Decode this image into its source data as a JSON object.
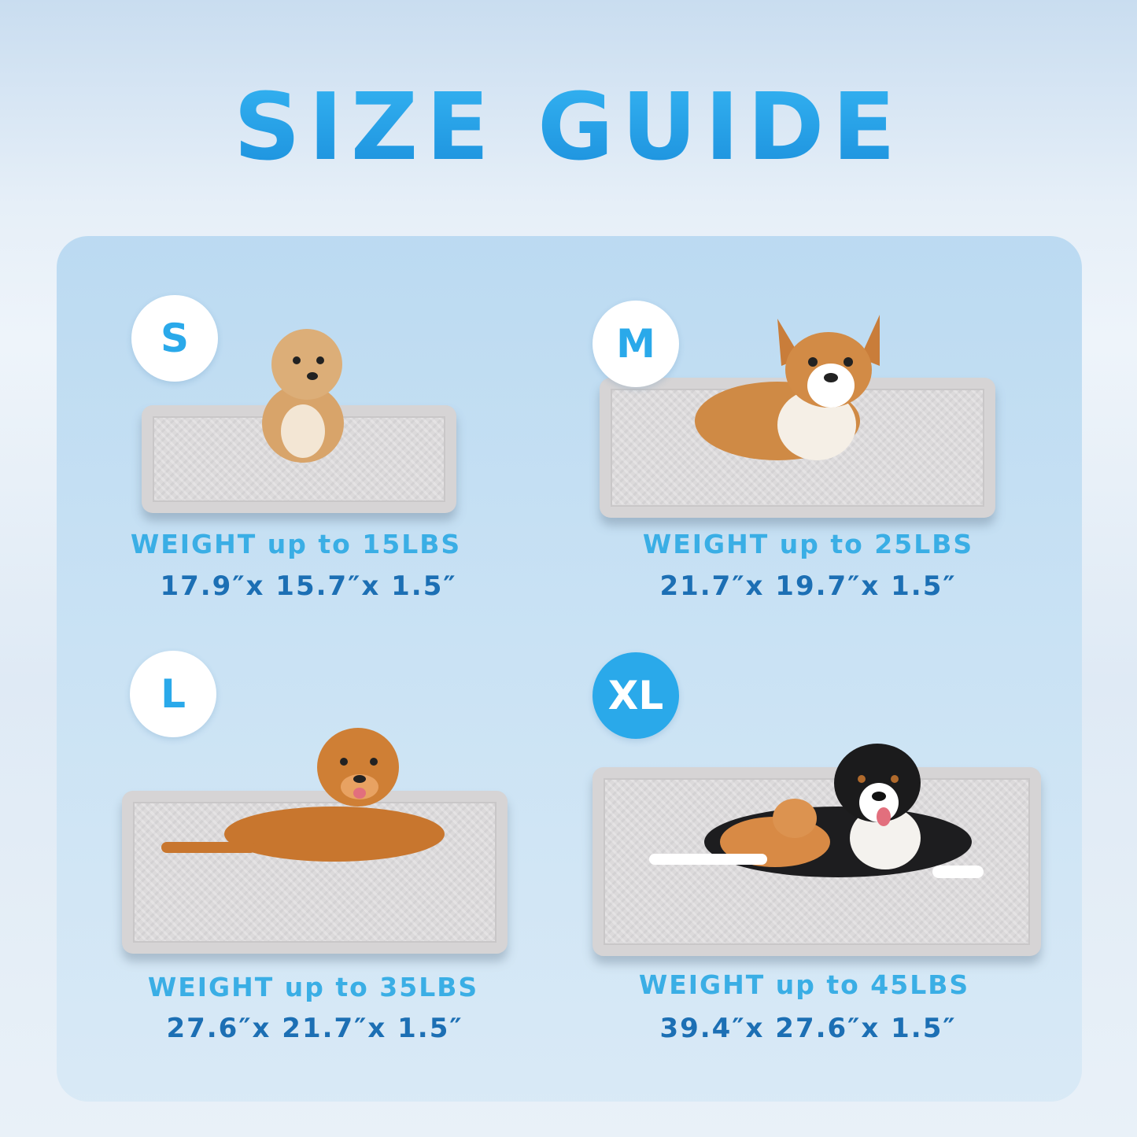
{
  "title": "SIZE GUIDE",
  "sizes": [
    {
      "label": "S",
      "weight": "WEIGHT up to 15LBS",
      "dimensions": "17.9″x  15.7″x 1.5″",
      "selected": false
    },
    {
      "label": "M",
      "weight": "WEIGHT up to 25LBS",
      "dimensions": "21.7″x  19.7″x 1.5″",
      "selected": false
    },
    {
      "label": "L",
      "weight": "WEIGHT up to 35LBS",
      "dimensions": "27.6″x  21.7″x 1.5″",
      "selected": false
    },
    {
      "label": "XL",
      "weight": "WEIGHT up to 45LBS",
      "dimensions": "39.4″x  27.6″x 1.5″",
      "selected": true
    }
  ],
  "colors": {
    "accent": "#2aa9ea",
    "dimension_text": "#1c6fb4",
    "mat": "#dcdadb"
  }
}
